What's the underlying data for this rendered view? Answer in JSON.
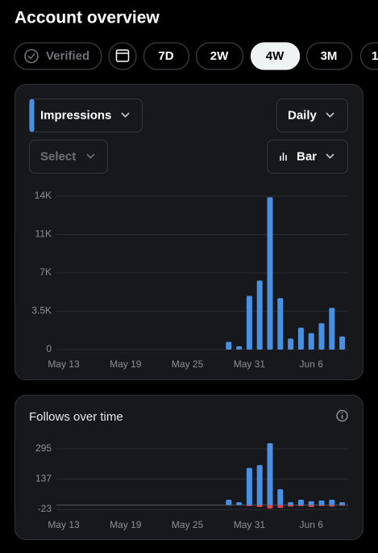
{
  "header": {
    "title": "Account overview"
  },
  "filters": {
    "verified": "Verified",
    "ranges": [
      "7D",
      "2W",
      "4W",
      "3M",
      "1"
    ]
  },
  "controls": {
    "metric": "Impressions",
    "interval": "Daily",
    "compare": "Select",
    "chart_type": "Bar"
  },
  "chart_data": [
    {
      "type": "bar",
      "categories": [
        "May 13",
        null,
        null,
        null,
        null,
        null,
        "May 19",
        null,
        null,
        null,
        null,
        null,
        "May 25",
        null,
        null,
        null,
        null,
        null,
        "May 31",
        null,
        null,
        null,
        null,
        null,
        "Jun 6",
        null,
        null,
        null
      ],
      "values": [
        0,
        0,
        0,
        0,
        0,
        0,
        0,
        0,
        0,
        0,
        0,
        0,
        0,
        0,
        0,
        0,
        700,
        300,
        4900,
        6300,
        13900,
        4700,
        1000,
        2000,
        1500,
        2400,
        3800,
        1200
      ],
      "color": "#4a90e2",
      "ylim": [
        0,
        14000
      ],
      "yticks": [
        0,
        {
          "value": 3500,
          "label": "3.5K"
        },
        {
          "value": 7000,
          "label": "7K"
        },
        {
          "value": 10500,
          "label": "11K"
        },
        {
          "value": 14000,
          "label": "14K"
        }
      ],
      "grid": true
    },
    {
      "type": "bar",
      "title": "Follows over time",
      "categories": [
        "May 13",
        null,
        null,
        null,
        null,
        null,
        "May 19",
        null,
        null,
        null,
        null,
        null,
        "May 25",
        null,
        null,
        null,
        null,
        null,
        "May 31",
        null,
        null,
        null,
        null,
        null,
        "Jun 6",
        null,
        null,
        null
      ],
      "series": [
        {
          "color": "#4a90e2",
          "values": [
            0,
            0,
            0,
            0,
            0,
            0,
            0,
            0,
            0,
            0,
            0,
            0,
            0,
            0,
            0,
            0,
            28,
            15,
            195,
            210,
            325,
            83,
            15,
            28,
            20,
            24,
            28,
            15
          ]
        },
        {
          "color": "#e0454f",
          "values": [
            0,
            0,
            0,
            0,
            0,
            0,
            0,
            0,
            0,
            0,
            0,
            0,
            0,
            0,
            0,
            0,
            0,
            0,
            -5,
            -10,
            -18,
            -15,
            -8,
            -5,
            -10,
            -5,
            -8,
            -3
          ]
        }
      ],
      "ylim": [
        -60,
        340
      ],
      "yticks": [
        -23,
        137,
        295
      ],
      "grid": true
    }
  ]
}
